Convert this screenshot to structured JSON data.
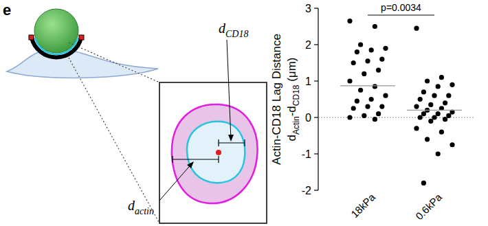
{
  "panel_label": "e",
  "diagram": {
    "label_cd18": {
      "symbol": "d",
      "subscript": "CD18"
    },
    "label_actin": {
      "symbol": "d",
      "subscript": "actin"
    }
  },
  "chart_data": {
    "type": "strip",
    "categories": [
      "18kPa",
      "0.6kPa"
    ],
    "values": [
      [
        2.65,
        2.5,
        2.0,
        1.9,
        1.85,
        1.8,
        1.6,
        1.55,
        1.5,
        1.3,
        1.2,
        1.0,
        0.85,
        0.75,
        0.6,
        0.5,
        0.45,
        0.3,
        0.3,
        0.25,
        0.1,
        0.05,
        0.0,
        -0.05
      ],
      [
        2.45,
        1.1,
        1.0,
        0.9,
        0.85,
        0.7,
        0.6,
        0.6,
        0.5,
        0.4,
        0.35,
        0.3,
        0.25,
        0.2,
        0.15,
        0.1,
        0.1,
        0.05,
        0.0,
        0.0,
        -0.05,
        -0.1,
        -0.3,
        -0.4,
        -0.6,
        -0.75,
        -1.0,
        -1.8
      ]
    ],
    "means": [
      0.87,
      0.2
    ],
    "hline": 0,
    "ylim": [
      -2,
      3
    ],
    "yticks": [
      -2,
      -1,
      0,
      1,
      2,
      3
    ],
    "y_label": [
      "Actin-CD18 Lag Distance",
      [
        {
          "text": "d"
        },
        {
          "text": "Actin",
          "sub": true
        },
        {
          "text": "-d"
        },
        {
          "text": "CD18",
          "sub": true
        },
        {
          "text": " (μm)"
        }
      ]
    ],
    "annotation": "p=0.0034",
    "color": "#000000"
  }
}
